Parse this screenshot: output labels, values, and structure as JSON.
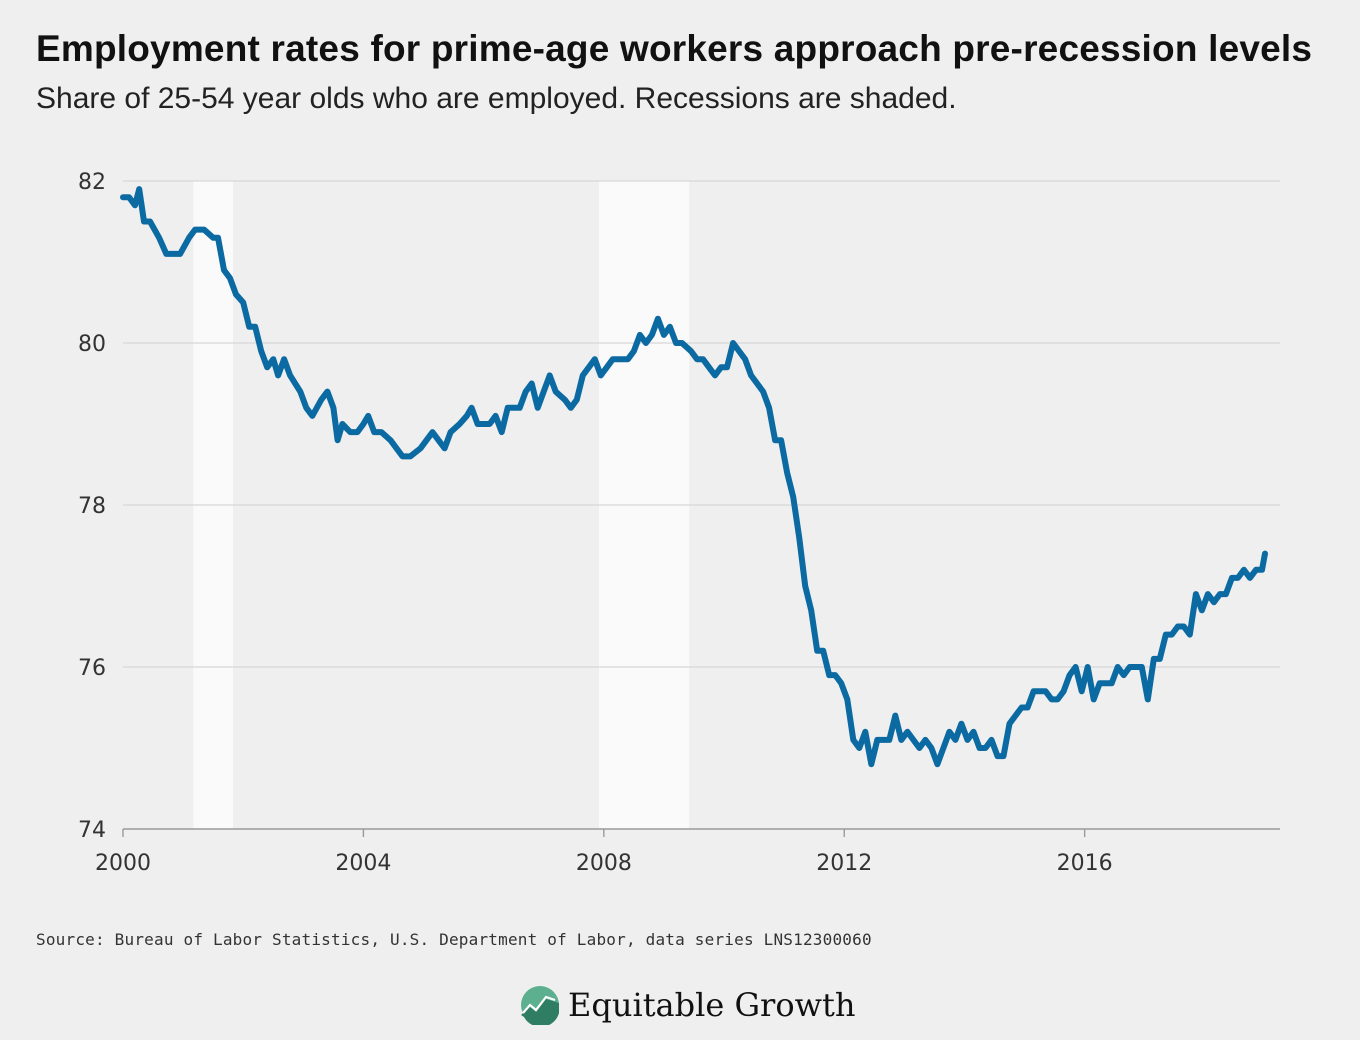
{
  "colors": {
    "line": "#0b6aa2",
    "recession": "#fafafa",
    "grid": "#d6d6d6",
    "background": "#efefef",
    "brand_green": "#5cb08f"
  },
  "header": {
    "title": "Employment rates for prime-age workers approach pre-recession levels",
    "subtitle": "Share of 25-54 year olds who are employed. Recessions are shaded."
  },
  "footer": {
    "source": "Source: Bureau of Labor Statistics, U.S. Department of Labor, data series LNS12300060",
    "brand": "Equitable Growth",
    "brand_icon": "rising-chart-logo-icon"
  },
  "chart_data": {
    "type": "line",
    "title": "Employment rates for prime-age workers approach pre-recession levels",
    "subtitle": "Share of 25-54 year olds who are employed. Recessions are shaded.",
    "xlabel": "",
    "ylabel": "",
    "xlim": [
      2000,
      2019.25
    ],
    "ylim": [
      74,
      82
    ],
    "x_ticks": [
      "2000",
      "2004",
      "2008",
      "2012",
      "2016"
    ],
    "y_ticks": [
      "74",
      "76",
      "78",
      "80",
      "82"
    ],
    "grid": "horizontal",
    "recessions": [
      {
        "start": 2001.17,
        "end": 2001.83
      },
      {
        "start": 2007.92,
        "end": 2009.42
      }
    ],
    "series": [
      {
        "points": [
          [
            2000.0,
            81.8
          ],
          [
            2000.1,
            81.8
          ],
          [
            2000.2,
            81.7
          ],
          [
            2000.27,
            81.9
          ],
          [
            2000.35,
            81.5
          ],
          [
            2000.45,
            81.5
          ],
          [
            2000.6,
            81.3
          ],
          [
            2000.72,
            81.1
          ],
          [
            2000.95,
            81.1
          ],
          [
            2001.1,
            81.3
          ],
          [
            2001.2,
            81.4
          ],
          [
            2001.35,
            81.4
          ],
          [
            2001.5,
            81.3
          ],
          [
            2001.58,
            81.3
          ],
          [
            2001.68,
            80.9
          ],
          [
            2001.78,
            80.8
          ],
          [
            2001.88,
            80.6
          ],
          [
            2002.0,
            80.5
          ],
          [
            2002.1,
            80.2
          ],
          [
            2002.2,
            80.2
          ],
          [
            2002.3,
            79.9
          ],
          [
            2002.4,
            79.7
          ],
          [
            2002.5,
            79.8
          ],
          [
            2002.58,
            79.6
          ],
          [
            2002.68,
            79.8
          ],
          [
            2002.78,
            79.6
          ],
          [
            2002.95,
            79.4
          ],
          [
            2003.05,
            79.2
          ],
          [
            2003.15,
            79.1
          ],
          [
            2003.3,
            79.3
          ],
          [
            2003.4,
            79.4
          ],
          [
            2003.5,
            79.2
          ],
          [
            2003.57,
            78.8
          ],
          [
            2003.65,
            79.0
          ],
          [
            2003.78,
            78.9
          ],
          [
            2003.9,
            78.9
          ],
          [
            2004.0,
            79.0
          ],
          [
            2004.08,
            79.1
          ],
          [
            2004.18,
            78.9
          ],
          [
            2004.3,
            78.9
          ],
          [
            2004.45,
            78.8
          ],
          [
            2004.55,
            78.7
          ],
          [
            2004.65,
            78.6
          ],
          [
            2004.78,
            78.6
          ],
          [
            2004.95,
            78.7
          ],
          [
            2005.05,
            78.8
          ],
          [
            2005.15,
            78.9
          ],
          [
            2005.25,
            78.8
          ],
          [
            2005.35,
            78.7
          ],
          [
            2005.45,
            78.9
          ],
          [
            2005.6,
            79.0
          ],
          [
            2005.72,
            79.1
          ],
          [
            2005.8,
            79.2
          ],
          [
            2005.9,
            79.0
          ],
          [
            2006.0,
            79.0
          ],
          [
            2006.1,
            79.0
          ],
          [
            2006.2,
            79.1
          ],
          [
            2006.3,
            78.9
          ],
          [
            2006.4,
            79.2
          ],
          [
            2006.5,
            79.2
          ],
          [
            2006.6,
            79.2
          ],
          [
            2006.7,
            79.4
          ],
          [
            2006.8,
            79.5
          ],
          [
            2006.9,
            79.2
          ],
          [
            2007.0,
            79.4
          ],
          [
            2007.1,
            79.6
          ],
          [
            2007.2,
            79.4
          ],
          [
            2007.35,
            79.3
          ],
          [
            2007.45,
            79.2
          ],
          [
            2007.55,
            79.3
          ],
          [
            2007.65,
            79.6
          ],
          [
            2007.75,
            79.7
          ],
          [
            2007.85,
            79.8
          ],
          [
            2007.95,
            79.6
          ],
          [
            2008.05,
            79.7
          ],
          [
            2008.15,
            79.8
          ],
          [
            2008.3,
            79.8
          ],
          [
            2008.4,
            79.8
          ],
          [
            2008.5,
            79.9
          ],
          [
            2008.6,
            80.1
          ],
          [
            2008.7,
            80.0
          ],
          [
            2008.8,
            80.1
          ],
          [
            2008.9,
            80.3
          ],
          [
            2009.0,
            80.1
          ],
          [
            2009.1,
            80.2
          ],
          [
            2009.2,
            80.0
          ],
          [
            2009.3,
            80.0
          ],
          [
            2009.45,
            79.9
          ],
          [
            2009.55,
            79.8
          ],
          [
            2009.65,
            79.8
          ],
          [
            2009.75,
            79.7
          ],
          [
            2009.85,
            79.6
          ],
          [
            2009.95,
            79.7
          ],
          [
            2010.05,
            79.7
          ],
          [
            2010.15,
            80.0
          ],
          [
            2010.25,
            79.9
          ],
          [
            2010.35,
            79.8
          ],
          [
            2010.45,
            79.6
          ],
          [
            2010.55,
            79.5
          ],
          [
            2010.65,
            79.4
          ],
          [
            2010.75,
            79.2
          ],
          [
            2010.85,
            78.8
          ],
          [
            2010.95,
            78.8
          ],
          [
            2011.05,
            78.4
          ],
          [
            2011.15,
            78.1
          ],
          [
            2011.25,
            77.6
          ],
          [
            2011.35,
            77.0
          ],
          [
            2011.45,
            76.7
          ],
          [
            2011.55,
            76.2
          ],
          [
            2011.65,
            76.2
          ],
          [
            2011.75,
            75.9
          ],
          [
            2011.85,
            75.9
          ],
          [
            2011.95,
            75.8
          ],
          [
            2012.05,
            75.6
          ],
          [
            2012.15,
            75.1
          ],
          [
            2012.25,
            75.0
          ],
          [
            2012.35,
            75.2
          ],
          [
            2012.45,
            74.8
          ],
          [
            2012.55,
            75.1
          ],
          [
            2012.65,
            75.1
          ],
          [
            2012.75,
            75.1
          ],
          [
            2012.85,
            75.4
          ],
          [
            2012.95,
            75.1
          ],
          [
            2013.05,
            75.2
          ],
          [
            2013.15,
            75.1
          ],
          [
            2013.25,
            75.0
          ],
          [
            2013.35,
            75.1
          ],
          [
            2013.45,
            75.0
          ],
          [
            2013.55,
            74.8
          ],
          [
            2013.65,
            75.0
          ],
          [
            2013.75,
            75.2
          ],
          [
            2013.85,
            75.1
          ],
          [
            2013.95,
            75.3
          ],
          [
            2014.05,
            75.1
          ],
          [
            2014.15,
            75.2
          ],
          [
            2014.25,
            75.0
          ],
          [
            2014.35,
            75.0
          ],
          [
            2014.45,
            75.1
          ],
          [
            2014.55,
            74.9
          ],
          [
            2014.65,
            74.9
          ],
          [
            2014.75,
            75.3
          ],
          [
            2014.85,
            75.4
          ],
          [
            2014.95,
            75.5
          ],
          [
            2015.05,
            75.5
          ],
          [
            2015.15,
            75.7
          ],
          [
            2015.25,
            75.7
          ],
          [
            2015.35,
            75.7
          ],
          [
            2015.45,
            75.6
          ],
          [
            2015.55,
            75.6
          ],
          [
            2015.65,
            75.7
          ],
          [
            2015.75,
            75.9
          ],
          [
            2015.85,
            76.0
          ],
          [
            2015.95,
            75.7
          ],
          [
            2016.05,
            76.0
          ],
          [
            2016.15,
            75.6
          ],
          [
            2016.25,
            75.8
          ],
          [
            2016.35,
            75.8
          ],
          [
            2016.45,
            75.8
          ],
          [
            2016.55,
            76.0
          ],
          [
            2016.65,
            75.9
          ],
          [
            2016.75,
            76.0
          ],
          [
            2016.85,
            76.0
          ],
          [
            2016.95,
            76.0
          ],
          [
            2017.05,
            75.6
          ],
          [
            2017.15,
            76.1
          ],
          [
            2017.25,
            76.1
          ],
          [
            2017.35,
            76.4
          ],
          [
            2017.45,
            76.4
          ],
          [
            2017.55,
            76.5
          ],
          [
            2017.65,
            76.5
          ],
          [
            2017.75,
            76.4
          ],
          [
            2017.85,
            76.9
          ],
          [
            2017.95,
            76.7
          ],
          [
            2018.05,
            76.9
          ],
          [
            2018.15,
            76.8
          ],
          [
            2018.25,
            76.9
          ],
          [
            2018.35,
            76.9
          ],
          [
            2018.45,
            77.1
          ],
          [
            2018.55,
            77.1
          ],
          [
            2018.65,
            77.2
          ],
          [
            2018.75,
            77.1
          ],
          [
            2018.85,
            77.2
          ],
          [
            2018.95,
            77.2
          ],
          [
            2019.0,
            77.4
          ]
        ]
      }
    ]
  }
}
